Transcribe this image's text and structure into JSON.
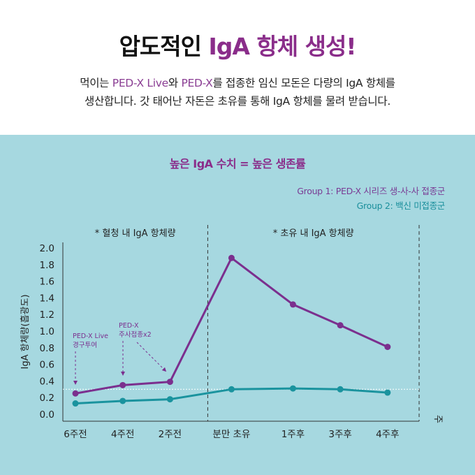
{
  "header": {
    "title_main": "압도적인 ",
    "title_accent": "IgA 항체 생성!",
    "subtitle_line1_a": "먹이는 ",
    "subtitle_line1_b": "PED-X Live",
    "subtitle_line1_c": "와 ",
    "subtitle_line1_d": "PED-X",
    "subtitle_line1_e": "를 접종한 임신 모돈은 다량의 IgA 항체를",
    "subtitle_line2": "생산합니다. 갓 태어난 자돈은 초유를 통해 IgA 항체를 물려 받습니다."
  },
  "colors": {
    "background_panel": "#a6d8e0",
    "group1": "#7b2f8e",
    "group2": "#1a939e",
    "title_accent": "#8a2d8a"
  },
  "chart_data": {
    "type": "line",
    "title": "높은 IgA 수치 = 높은 생존률",
    "ylabel": "IgA 항체량(흡광도)",
    "xlabel": "주",
    "ylim": [
      0,
      2.0
    ],
    "yticks": [
      "0.0",
      "0.2",
      "0.4",
      "0.6",
      "0.8",
      "1.0",
      "1.2",
      "1.4",
      "1.6",
      "1.8",
      "2.0"
    ],
    "categories": [
      "6주전",
      "4주전",
      "2주전",
      "분만 초유",
      "1주후",
      "3주후",
      "4주후"
    ],
    "x_positions": [
      0,
      1,
      2,
      3.3,
      4.6,
      5.6,
      6.6
    ],
    "series": [
      {
        "name": "Group 1: PED-X 시리즈 생-사-사 접종군",
        "color": "#7b2f8e",
        "values": [
          0.25,
          0.35,
          0.39,
          1.88,
          1.32,
          1.07,
          0.81
        ]
      },
      {
        "name": "Group 2: 백신 미접종군",
        "color": "#1a939e",
        "values": [
          0.13,
          0.16,
          0.18,
          0.3,
          0.31,
          0.3,
          0.26
        ]
      }
    ],
    "sections": [
      {
        "label": "* 혈청 내 IgA 항체량"
      },
      {
        "label": "* 초유 내 IgA 항체량"
      }
    ],
    "annotations": [
      {
        "text_line1": "PED-X Live",
        "text_line2": "경구투여"
      },
      {
        "text_line1": "PED-X",
        "text_line2": "주사접종x2"
      }
    ],
    "reference_line": {
      "value": 0.3
    },
    "legend_position": "top-right",
    "grid": false
  }
}
